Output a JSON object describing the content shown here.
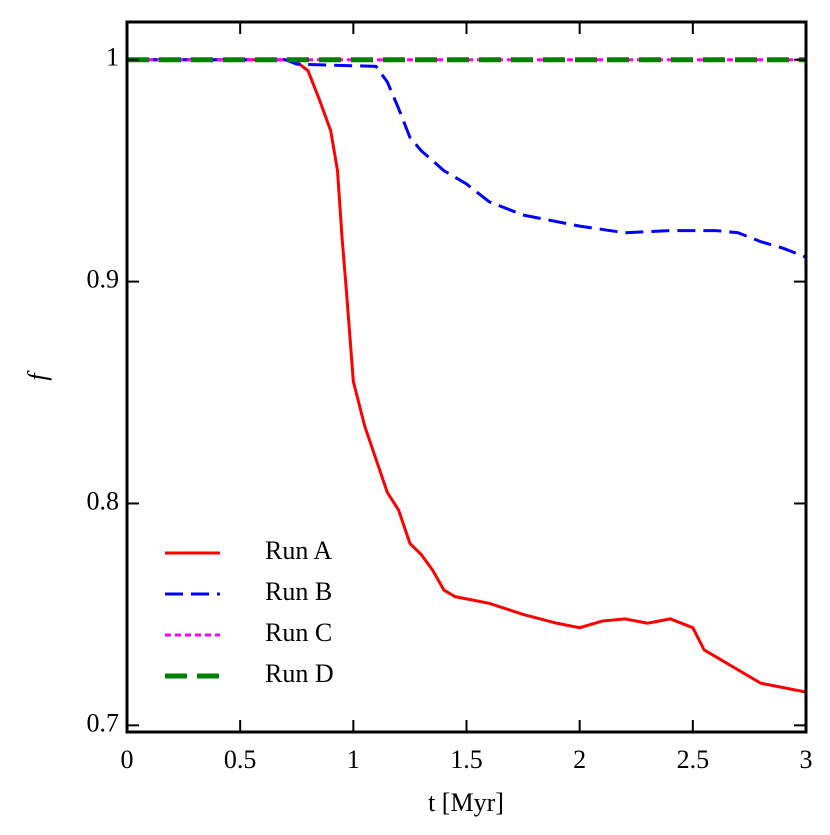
{
  "chart_data": {
    "type": "line",
    "xlabel": "t [Myr]",
    "ylabel": "f",
    "xlim": [
      0,
      3
    ],
    "ylim": [
      0.697,
      1.017
    ],
    "xticks": [
      0,
      0.5,
      1,
      1.5,
      2,
      2.5,
      3
    ],
    "yticks": [
      0.7,
      0.8,
      0.9,
      1
    ],
    "legend": "lower left",
    "series": [
      {
        "name": "Run A",
        "color": "#ff0000",
        "dash": "solid",
        "x": [
          0,
          0.6,
          0.7,
          0.75,
          0.8,
          0.85,
          0.9,
          0.93,
          0.95,
          0.97,
          1.0,
          1.05,
          1.1,
          1.15,
          1.2,
          1.25,
          1.3,
          1.35,
          1.4,
          1.45,
          1.5,
          1.6,
          1.75,
          1.9,
          2.0,
          2.1,
          2.2,
          2.3,
          2.4,
          2.5,
          2.55,
          2.6,
          2.7,
          2.8,
          2.9,
          3.0
        ],
        "values": [
          1,
          1,
          1,
          0.999,
          0.995,
          0.982,
          0.968,
          0.95,
          0.92,
          0.895,
          0.855,
          0.835,
          0.82,
          0.805,
          0.797,
          0.782,
          0.777,
          0.77,
          0.761,
          0.758,
          0.757,
          0.755,
          0.75,
          0.746,
          0.744,
          0.747,
          0.748,
          0.746,
          0.748,
          0.744,
          0.734,
          0.731,
          0.725,
          0.719,
          0.717,
          0.715
        ]
      },
      {
        "name": "Run B",
        "color": "#0000ff",
        "dash": "dashed",
        "x": [
          0,
          0.7,
          0.75,
          1.1,
          1.15,
          1.2,
          1.25,
          1.3,
          1.4,
          1.5,
          1.6,
          1.75,
          1.9,
          2.0,
          2.2,
          2.4,
          2.6,
          2.7,
          2.8,
          2.9,
          3.0
        ],
        "values": [
          1,
          1,
          0.998,
          0.997,
          0.99,
          0.978,
          0.965,
          0.959,
          0.95,
          0.944,
          0.936,
          0.93,
          0.927,
          0.925,
          0.922,
          0.923,
          0.923,
          0.922,
          0.918,
          0.915,
          0.911
        ]
      },
      {
        "name": "Run C",
        "color": "#ff00ff",
        "dash": "dotted",
        "x": [
          0,
          3
        ],
        "values": [
          1,
          1
        ]
      },
      {
        "name": "Run D",
        "color": "#008000",
        "dash": "longdash",
        "x": [
          0,
          3
        ],
        "values": [
          1,
          1
        ]
      }
    ]
  }
}
